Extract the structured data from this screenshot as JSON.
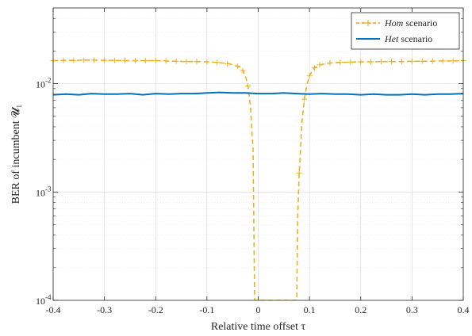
{
  "chart_data": {
    "type": "line",
    "title": "",
    "xlabel": "Relative time offset τ",
    "ylabel": "BER of incumbent 𝓤₁",
    "xlim": [
      -0.4,
      0.4
    ],
    "ylim": [
      0.0001,
      0.05
    ],
    "yscale": "log",
    "grid": true,
    "minor_grid": true,
    "legend_position": "top-right",
    "x_ticks": [
      -0.4,
      -0.3,
      -0.2,
      -0.1,
      0,
      0.1,
      0.2,
      0.3,
      0.4
    ],
    "x_tick_labels": [
      "-0.4",
      "-0.3",
      "-0.2",
      "-0.1",
      "0",
      "0.1",
      "0.2",
      "0.3",
      "0.4"
    ],
    "y_ticks": [
      0.0001,
      0.001,
      0.01
    ],
    "y_tick_labels": [
      {
        "base": "10",
        "exp": "-4"
      },
      {
        "base": "10",
        "exp": "-3"
      },
      {
        "base": "10",
        "exp": "-2"
      }
    ],
    "series": [
      {
        "name_italic": "Hom",
        "name_rest": " scenario",
        "color": "#EDB120",
        "style": "dashed",
        "marker": "plus",
        "x": [
          -0.4,
          -0.38,
          -0.36,
          -0.34,
          -0.32,
          -0.3,
          -0.28,
          -0.26,
          -0.24,
          -0.22,
          -0.2,
          -0.18,
          -0.16,
          -0.14,
          -0.12,
          -0.1,
          -0.08,
          -0.06,
          -0.05,
          -0.04,
          -0.035,
          -0.03,
          -0.025,
          -0.02,
          -0.015,
          -0.01,
          -0.007,
          0.075,
          0.077,
          0.08,
          0.085,
          0.09,
          0.095,
          0.1,
          0.105,
          0.11,
          0.12,
          0.14,
          0.16,
          0.18,
          0.2,
          0.22,
          0.24,
          0.26,
          0.28,
          0.3,
          0.32,
          0.34,
          0.36,
          0.38,
          0.4
        ],
        "y": [
          0.0163,
          0.0164,
          0.0164,
          0.0165,
          0.0165,
          0.0164,
          0.0164,
          0.0163,
          0.0163,
          0.0163,
          0.0163,
          0.0162,
          0.0161,
          0.016,
          0.016,
          0.0159,
          0.0157,
          0.0153,
          0.015,
          0.0145,
          0.014,
          0.0132,
          0.0118,
          0.0095,
          0.006,
          0.0025,
          0.0001,
          0.0001,
          0.0006,
          0.0015,
          0.0042,
          0.0072,
          0.0098,
          0.0118,
          0.0131,
          0.014,
          0.0149,
          0.0155,
          0.0157,
          0.0158,
          0.0159,
          0.0159,
          0.016,
          0.016,
          0.016,
          0.0161,
          0.0161,
          0.0161,
          0.0162,
          0.0162,
          0.0163
        ],
        "marker_x": [
          -0.4,
          -0.38,
          -0.36,
          -0.34,
          -0.32,
          -0.3,
          -0.28,
          -0.26,
          -0.24,
          -0.22,
          -0.2,
          -0.18,
          -0.16,
          -0.14,
          -0.12,
          -0.1,
          -0.08,
          -0.06,
          -0.04,
          -0.03,
          -0.02,
          0.08,
          0.09,
          0.1,
          0.11,
          0.12,
          0.14,
          0.16,
          0.18,
          0.2,
          0.22,
          0.24,
          0.26,
          0.28,
          0.3,
          0.32,
          0.34,
          0.36,
          0.38,
          0.4
        ],
        "marker_y": [
          0.0163,
          0.0164,
          0.0164,
          0.0165,
          0.0165,
          0.0164,
          0.0164,
          0.0163,
          0.0163,
          0.0163,
          0.0163,
          0.0162,
          0.0161,
          0.016,
          0.016,
          0.0159,
          0.0157,
          0.0153,
          0.0145,
          0.0132,
          0.0095,
          0.0015,
          0.0072,
          0.0118,
          0.014,
          0.0149,
          0.0155,
          0.0157,
          0.0158,
          0.0159,
          0.0159,
          0.016,
          0.016,
          0.016,
          0.0161,
          0.0161,
          0.0161,
          0.0162,
          0.0162,
          0.0163
        ]
      },
      {
        "name_italic": "Het",
        "name_rest": " scenario",
        "color": "#0072BD",
        "style": "solid",
        "marker": "none",
        "x": [
          -0.4,
          -0.375,
          -0.35,
          -0.325,
          -0.3,
          -0.275,
          -0.25,
          -0.225,
          -0.2,
          -0.175,
          -0.15,
          -0.125,
          -0.1,
          -0.075,
          -0.05,
          -0.025,
          0,
          0.025,
          0.05,
          0.075,
          0.1,
          0.125,
          0.15,
          0.175,
          0.2,
          0.225,
          0.25,
          0.275,
          0.3,
          0.325,
          0.35,
          0.375,
          0.4
        ],
        "y": [
          0.0079,
          0.008,
          0.0079,
          0.0081,
          0.008,
          0.008,
          0.0081,
          0.0079,
          0.0081,
          0.008,
          0.0081,
          0.0081,
          0.0082,
          0.0083,
          0.0082,
          0.0082,
          0.0081,
          0.0081,
          0.0082,
          0.0081,
          0.008,
          0.0081,
          0.008,
          0.008,
          0.0079,
          0.008,
          0.0079,
          0.0079,
          0.008,
          0.0079,
          0.008,
          0.008,
          0.0081
        ]
      }
    ]
  }
}
